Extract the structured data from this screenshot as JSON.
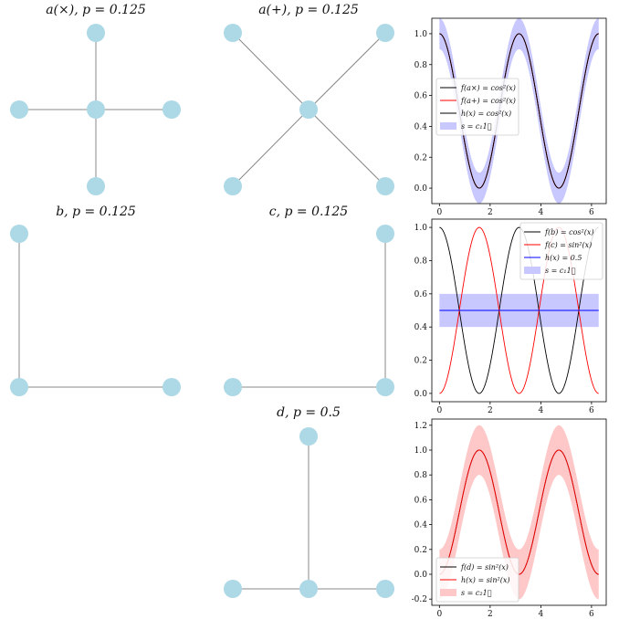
{
  "graphs": [
    {
      "title": "a(×), p = 0.125",
      "kind": "plus"
    },
    {
      "title": "a(+), p = 0.125",
      "kind": "cross"
    },
    {
      "title": "b, p = 0.125",
      "kind": "L"
    },
    {
      "title": "c, p = 0.125",
      "kind": "J"
    },
    {
      "title": "d, p = 0.5",
      "kind": "T"
    }
  ],
  "colors": {
    "node": "#add8e6",
    "edge": "#888888",
    "black": "#000000",
    "red": "#ff0000",
    "blue": "#0000ff",
    "blue_band": "#c8c8ff",
    "red_band": "#ffc8c8"
  },
  "chart_data": [
    {
      "type": "line",
      "xlim": [
        -0.3,
        6.58
      ],
      "ylim": [
        -0.1,
        1.1
      ],
      "xticks": [
        0,
        2,
        4,
        6
      ],
      "yticks": [
        0.0,
        0.2,
        0.4,
        0.6,
        0.8,
        1.0
      ],
      "grid": false,
      "legend_position": "center-left",
      "series": [
        {
          "name": "f(a×) = cos²(x)",
          "function": "cos2",
          "color": "#000000"
        },
        {
          "name": "f(a+) = cos²(x)",
          "function": "cos2",
          "color": "#ff0000"
        },
        {
          "name": "h(x) = cos²(x)",
          "function": "cos2",
          "color": "#000000"
        }
      ],
      "band": {
        "name": "s = c₁1⃗",
        "center": "cos2",
        "halfwidth": 0.1,
        "color": "#c8c8ff"
      }
    },
    {
      "type": "line",
      "xlim": [
        -0.3,
        6.58
      ],
      "ylim": [
        -0.05,
        1.05
      ],
      "xticks": [
        0,
        2,
        4,
        6
      ],
      "yticks": [
        0.0,
        0.2,
        0.4,
        0.6,
        0.8,
        1.0
      ],
      "grid": false,
      "legend_position": "top-right",
      "series": [
        {
          "name": "f(b) = cos²(x)",
          "function": "cos2",
          "color": "#000000"
        },
        {
          "name": "f(c) = sin²(x)",
          "function": "sin2",
          "color": "#ff0000"
        },
        {
          "name": "h(x) = 0.5",
          "function": "half",
          "color": "#0000ff"
        }
      ],
      "band": {
        "name": "s = c₁1⃗",
        "center": "half",
        "halfwidth": 0.1,
        "color": "#c8c8ff"
      }
    },
    {
      "type": "line",
      "xlim": [
        -0.3,
        6.58
      ],
      "ylim": [
        -0.25,
        1.25
      ],
      "xticks": [
        0,
        2,
        4,
        6
      ],
      "yticks": [
        -0.2,
        0.0,
        0.2,
        0.4,
        0.6,
        0.8,
        1.0,
        1.2
      ],
      "grid": false,
      "legend_position": "bottom-left",
      "series": [
        {
          "name": "f(d) = sin²(x)",
          "function": "sin2",
          "color": "#000000"
        },
        {
          "name": "h(x) = sin²(x)",
          "function": "sin2",
          "color": "#ff0000"
        }
      ],
      "band": {
        "name": "s = c₂1⃗",
        "center": "sin2",
        "halfwidth": 0.2,
        "color": "#ffc8c8"
      }
    }
  ]
}
